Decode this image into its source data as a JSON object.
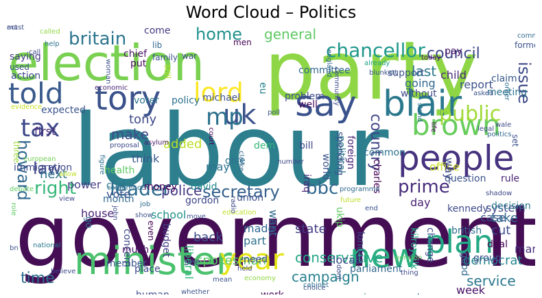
{
  "title": "Word Cloud – Politics",
  "words": [
    {
      "t": "labour",
      "c": "#2d7f8e"
    },
    {
      "t": "government",
      "c": "#440d54"
    },
    {
      "t": "party",
      "c": "#8ed645"
    },
    {
      "t": "election",
      "c": "#7ad151"
    },
    {
      "t": "people",
      "c": "#46327e"
    },
    {
      "t": "minister",
      "c": "#4ac16d"
    },
    {
      "t": "blair",
      "c": "#2a788e"
    },
    {
      "t": "say",
      "c": "#3a528b"
    },
    {
      "t": "tory",
      "c": "#3b528b"
    },
    {
      "t": "told",
      "c": "#38598c"
    },
    {
      "t": "lord",
      "c": "#fde725"
    },
    {
      "t": "brown",
      "c": "#67cc5c"
    },
    {
      "t": "new",
      "c": "#29af7f"
    },
    {
      "t": "plan",
      "c": "#22a884"
    },
    {
      "t": "year",
      "c": "#e5e419"
    },
    {
      "t": "uk",
      "c": "#3b528b"
    },
    {
      "t": "mp",
      "c": "#2c718e"
    },
    {
      "t": "tax",
      "c": "#3e4989"
    },
    {
      "t": "public",
      "c": "#a0da39"
    },
    {
      "t": "howard",
      "c": "#31688e"
    },
    {
      "t": "law",
      "c": "#404688"
    },
    {
      "t": "right",
      "c": "#35b779"
    },
    {
      "t": "leader",
      "c": "#2f6c8e"
    },
    {
      "t": "secretary",
      "c": "#35608d"
    },
    {
      "t": "bbc",
      "c": "#31688e"
    },
    {
      "t": "prime",
      "c": "#472d7b"
    },
    {
      "t": "country",
      "c": "#404387"
    },
    {
      "t": "issue",
      "c": "#3e4a89"
    },
    {
      "t": "chancellor",
      "c": "#1f988b"
    },
    {
      "t": "britain",
      "c": "#2b748e"
    },
    {
      "t": "home",
      "c": "#21918c"
    },
    {
      "t": "general",
      "c": "#5ec962"
    },
    {
      "t": "council",
      "c": "#3f4788"
    },
    {
      "t": "time",
      "c": "#2e6e8e"
    },
    {
      "t": "conservative",
      "c": "#22a785"
    },
    {
      "t": "campaign",
      "c": "#27808e"
    },
    {
      "t": "service",
      "c": "#2a768e"
    },
    {
      "t": "spokesman",
      "c": "#5ec962"
    },
    {
      "t": "make",
      "c": "#3e4989"
    },
    {
      "t": "last",
      "c": "#2a788e"
    },
    {
      "t": "report",
      "c": "#3b528b"
    },
    {
      "t": "child",
      "c": "#482878"
    },
    {
      "t": "going",
      "c": "#31688e"
    },
    {
      "t": "added",
      "c": "#bddf26"
    },
    {
      "t": "tony",
      "c": "#3e4989"
    },
    {
      "t": "first",
      "c": "#472c7a"
    },
    {
      "t": "next",
      "c": "#2c728e"
    },
    {
      "t": "vote",
      "c": "#3b528b"
    },
    {
      "t": "power",
      "c": "#433e85"
    },
    {
      "t": "police",
      "c": "#443983"
    },
    {
      "t": "house",
      "c": "#482475"
    },
    {
      "t": "school",
      "c": "#21918c"
    },
    {
      "t": "member",
      "c": "#3a548c"
    },
    {
      "t": "back",
      "c": "#3d4e8a"
    },
    {
      "t": "made",
      "c": "#31688e"
    },
    {
      "t": "part",
      "c": "#2c718e"
    },
    {
      "t": "want",
      "c": "#2f6b8e"
    },
    {
      "t": "local",
      "c": "#3e4c8a"
    },
    {
      "t": "case",
      "c": "#3b518b"
    },
    {
      "t": "day",
      "c": "#482071"
    },
    {
      "t": "take",
      "c": "#31688e"
    },
    {
      "t": "cut",
      "c": "#3d4d8a"
    },
    {
      "t": "many",
      "c": "#472f7d"
    },
    {
      "t": "democrat",
      "c": "#24878e"
    },
    {
      "t": "week",
      "c": "#471063"
    },
    {
      "t": "system",
      "c": "#3f4889"
    },
    {
      "t": "office",
      "c": "#c8e020"
    },
    {
      "t": "way",
      "c": "#3e4a89"
    },
    {
      "t": "rule",
      "c": "#482374"
    },
    {
      "t": "think",
      "c": "#38588c"
    },
    {
      "t": "health",
      "c": "#5ec962"
    },
    {
      "t": "immigration",
      "c": "#3e4989"
    },
    {
      "t": "expected",
      "c": "#3a548c"
    },
    {
      "t": "saying",
      "c": "#443a83"
    },
    {
      "t": "action",
      "c": "#3e4989"
    },
    {
      "t": "voter",
      "c": "#2a768e"
    },
    {
      "t": "policy",
      "c": "#2c718e"
    },
    {
      "t": "michael",
      "c": "#3b528b"
    },
    {
      "t": "chief",
      "c": "#471365"
    },
    {
      "t": "put",
      "c": "#46085c"
    },
    {
      "t": "come",
      "c": "#453781"
    },
    {
      "t": "eu",
      "c": "#26828e"
    },
    {
      "t": "common",
      "c": "#2c728e"
    },
    {
      "t": "dem",
      "c": "#32b67a"
    },
    {
      "t": "bill",
      "c": "#3f4889"
    },
    {
      "t": "may",
      "c": "#2c718e"
    },
    {
      "t": "iraq",
      "c": "#482576"
    },
    {
      "t": "david",
      "c": "#23898e"
    },
    {
      "t": "give",
      "c": "#2d708e"
    },
    {
      "t": "money",
      "c": "#440154"
    },
    {
      "t": "cost",
      "c": "#2a788e"
    },
    {
      "t": "month",
      "c": "#31688e"
    },
    {
      "t": "gordon",
      "c": "#3f4889"
    },
    {
      "t": "union",
      "c": "#3b528b"
    },
    {
      "t": "state",
      "c": "#433d84"
    },
    {
      "t": "go",
      "c": "#2c728e"
    },
    {
      "t": "need",
      "c": "#3e4989"
    },
    {
      "t": "much",
      "c": "#471063"
    },
    {
      "t": "place",
      "c": "#3f4788"
    },
    {
      "t": "budget",
      "c": "#433e85"
    },
    {
      "t": "liberal",
      "c": "#32b67a"
    },
    {
      "t": "see",
      "c": "#3d4d8a"
    },
    {
      "t": "human",
      "c": "#3e4989"
    },
    {
      "t": "concern",
      "c": "#3f4889"
    },
    {
      "t": "work",
      "c": "#440154"
    },
    {
      "t": "increase",
      "c": "#26828e"
    },
    {
      "t": "clear",
      "c": "#2c718e"
    },
    {
      "t": "world",
      "c": "#3b528b"
    },
    {
      "t": "political",
      "c": "#2a788e"
    },
    {
      "t": "foreign",
      "c": "#482173"
    },
    {
      "t": "spending",
      "c": "#3a548c"
    },
    {
      "t": "charles",
      "c": "#440154"
    },
    {
      "t": "kilroysilk",
      "c": "#22a884"
    },
    {
      "t": "change",
      "c": "#3e4989"
    },
    {
      "t": "british",
      "c": "#2e6e8e"
    },
    {
      "t": "ukip",
      "c": "#5ec962"
    },
    {
      "t": "london",
      "c": "#3e4c8a"
    },
    {
      "t": "parliament",
      "c": "#31688e"
    },
    {
      "t": "question",
      "c": "#3b528b"
    },
    {
      "t": "kennedy",
      "c": "#3e4989"
    },
    {
      "t": "decision",
      "c": "#2a788e"
    },
    {
      "t": "deal",
      "c": "#440154"
    },
    {
      "t": "group",
      "c": "#3b528b"
    },
    {
      "t": "good",
      "c": "#31688e"
    },
    {
      "t": "meeting",
      "c": "#2c728e"
    },
    {
      "t": "without",
      "c": "#3e4989"
    },
    {
      "t": "problem",
      "c": "#3e4c8a"
    },
    {
      "t": "well",
      "c": "#46085c"
    },
    {
      "t": "committee",
      "c": "#31688e"
    },
    {
      "t": "support",
      "c": "#3b528b"
    },
    {
      "t": "claim",
      "c": "#38598c"
    },
    {
      "t": "pay",
      "c": "#481668"
    },
    {
      "t": "former",
      "c": "#3b528b"
    },
    {
      "t": "lib",
      "c": "#31688e"
    },
    {
      "t": "family",
      "c": "#3b528b"
    },
    {
      "t": "still",
      "c": "#bddf26"
    },
    {
      "t": "war",
      "c": "#3e4989"
    },
    {
      "t": "men",
      "c": "#440154"
    },
    {
      "t": "help",
      "c": "#2c728e"
    },
    {
      "t": "used",
      "c": "#3b528b"
    },
    {
      "t": "called",
      "c": "#8fd744"
    },
    {
      "t": "woman",
      "c": "#3b528b"
    },
    {
      "t": "economic",
      "c": "#482878"
    },
    {
      "t": "figure",
      "c": "#2c718e"
    },
    {
      "t": "asylum",
      "c": "#481b6d"
    },
    {
      "t": "proposal",
      "c": "#3e4989"
    },
    {
      "t": "whether",
      "c": "#3b528b"
    },
    {
      "t": "court",
      "c": "#440154"
    },
    {
      "t": "england",
      "c": "#31688e"
    },
    {
      "t": "community",
      "c": "#3e4989"
    },
    {
      "t": "blunkett",
      "c": "#3b528b"
    },
    {
      "t": "already",
      "c": "#1fa187"
    },
    {
      "t": "today",
      "c": "#46085c"
    },
    {
      "t": "asked",
      "c": "#3b528b"
    },
    {
      "t": "order",
      "c": "#2c728e"
    },
    {
      "t": "wale",
      "c": "#3e4989"
    },
    {
      "t": "politics",
      "c": "#31688e"
    },
    {
      "t": "set",
      "c": "#3b528b"
    },
    {
      "t": "stand",
      "c": "#2c718e"
    },
    {
      "t": "life",
      "c": "#440154"
    },
    {
      "t": "legal",
      "c": "#3e4989"
    },
    {
      "t": "three",
      "c": "#a0da39"
    },
    {
      "t": "evidence",
      "c": "#c8e020"
    },
    {
      "t": "european",
      "c": "#74d055"
    },
    {
      "t": "debate",
      "c": "#5ec962"
    },
    {
      "t": "allow",
      "c": "#bddf26"
    },
    {
      "t": "view",
      "c": "#3e4989"
    },
    {
      "t": "role",
      "c": "#5ec962"
    },
    {
      "t": "bn",
      "c": "#3b528b"
    },
    {
      "t": "national",
      "c": "#2a788e"
    },
    {
      "t": "believe",
      "c": "#3e4989"
    },
    {
      "t": "job",
      "c": "#31688e"
    },
    {
      "t": "show",
      "c": "#3b528b"
    },
    {
      "t": "john",
      "c": "#3e4989"
    },
    {
      "t": "conference",
      "c": "#2c718e"
    },
    {
      "t": "even",
      "c": "#440154"
    },
    {
      "t": "move",
      "c": "#3b528b"
    },
    {
      "t": "education",
      "c": "#bddf26"
    },
    {
      "t": "held",
      "c": "#3e4989"
    },
    {
      "t": "economy",
      "c": "#8fd744"
    },
    {
      "t": "mean",
      "c": "#3b528b"
    },
    {
      "t": "radio",
      "c": "#3e4989"
    },
    {
      "t": "clarke",
      "c": "#31688e"
    },
    {
      "t": "number",
      "c": "#3e4989"
    },
    {
      "t": "programme",
      "c": "#31688e"
    },
    {
      "t": "future",
      "c": "#bddf26"
    },
    {
      "t": "end",
      "c": "#3b528b"
    },
    {
      "t": "dont",
      "c": "#3e4989"
    },
    {
      "t": "cabinet",
      "c": "#2c718e"
    },
    {
      "t": "pension",
      "c": "#5ec962"
    },
    {
      "t": "choice",
      "c": "#3b528b"
    },
    {
      "t": "thing",
      "c": "#3e4989"
    },
    {
      "t": "shadow",
      "c": "#3e4989"
    },
    {
      "t": "poll",
      "c": "#3b528b"
    },
    {
      "t": "call",
      "c": "#3e4989"
    },
    {
      "t": "comment",
      "c": "#31688e"
    },
    {
      "t": "act",
      "c": "#3e4989"
    },
    {
      "t": "must",
      "c": "#3b528b"
    }
  ]
}
